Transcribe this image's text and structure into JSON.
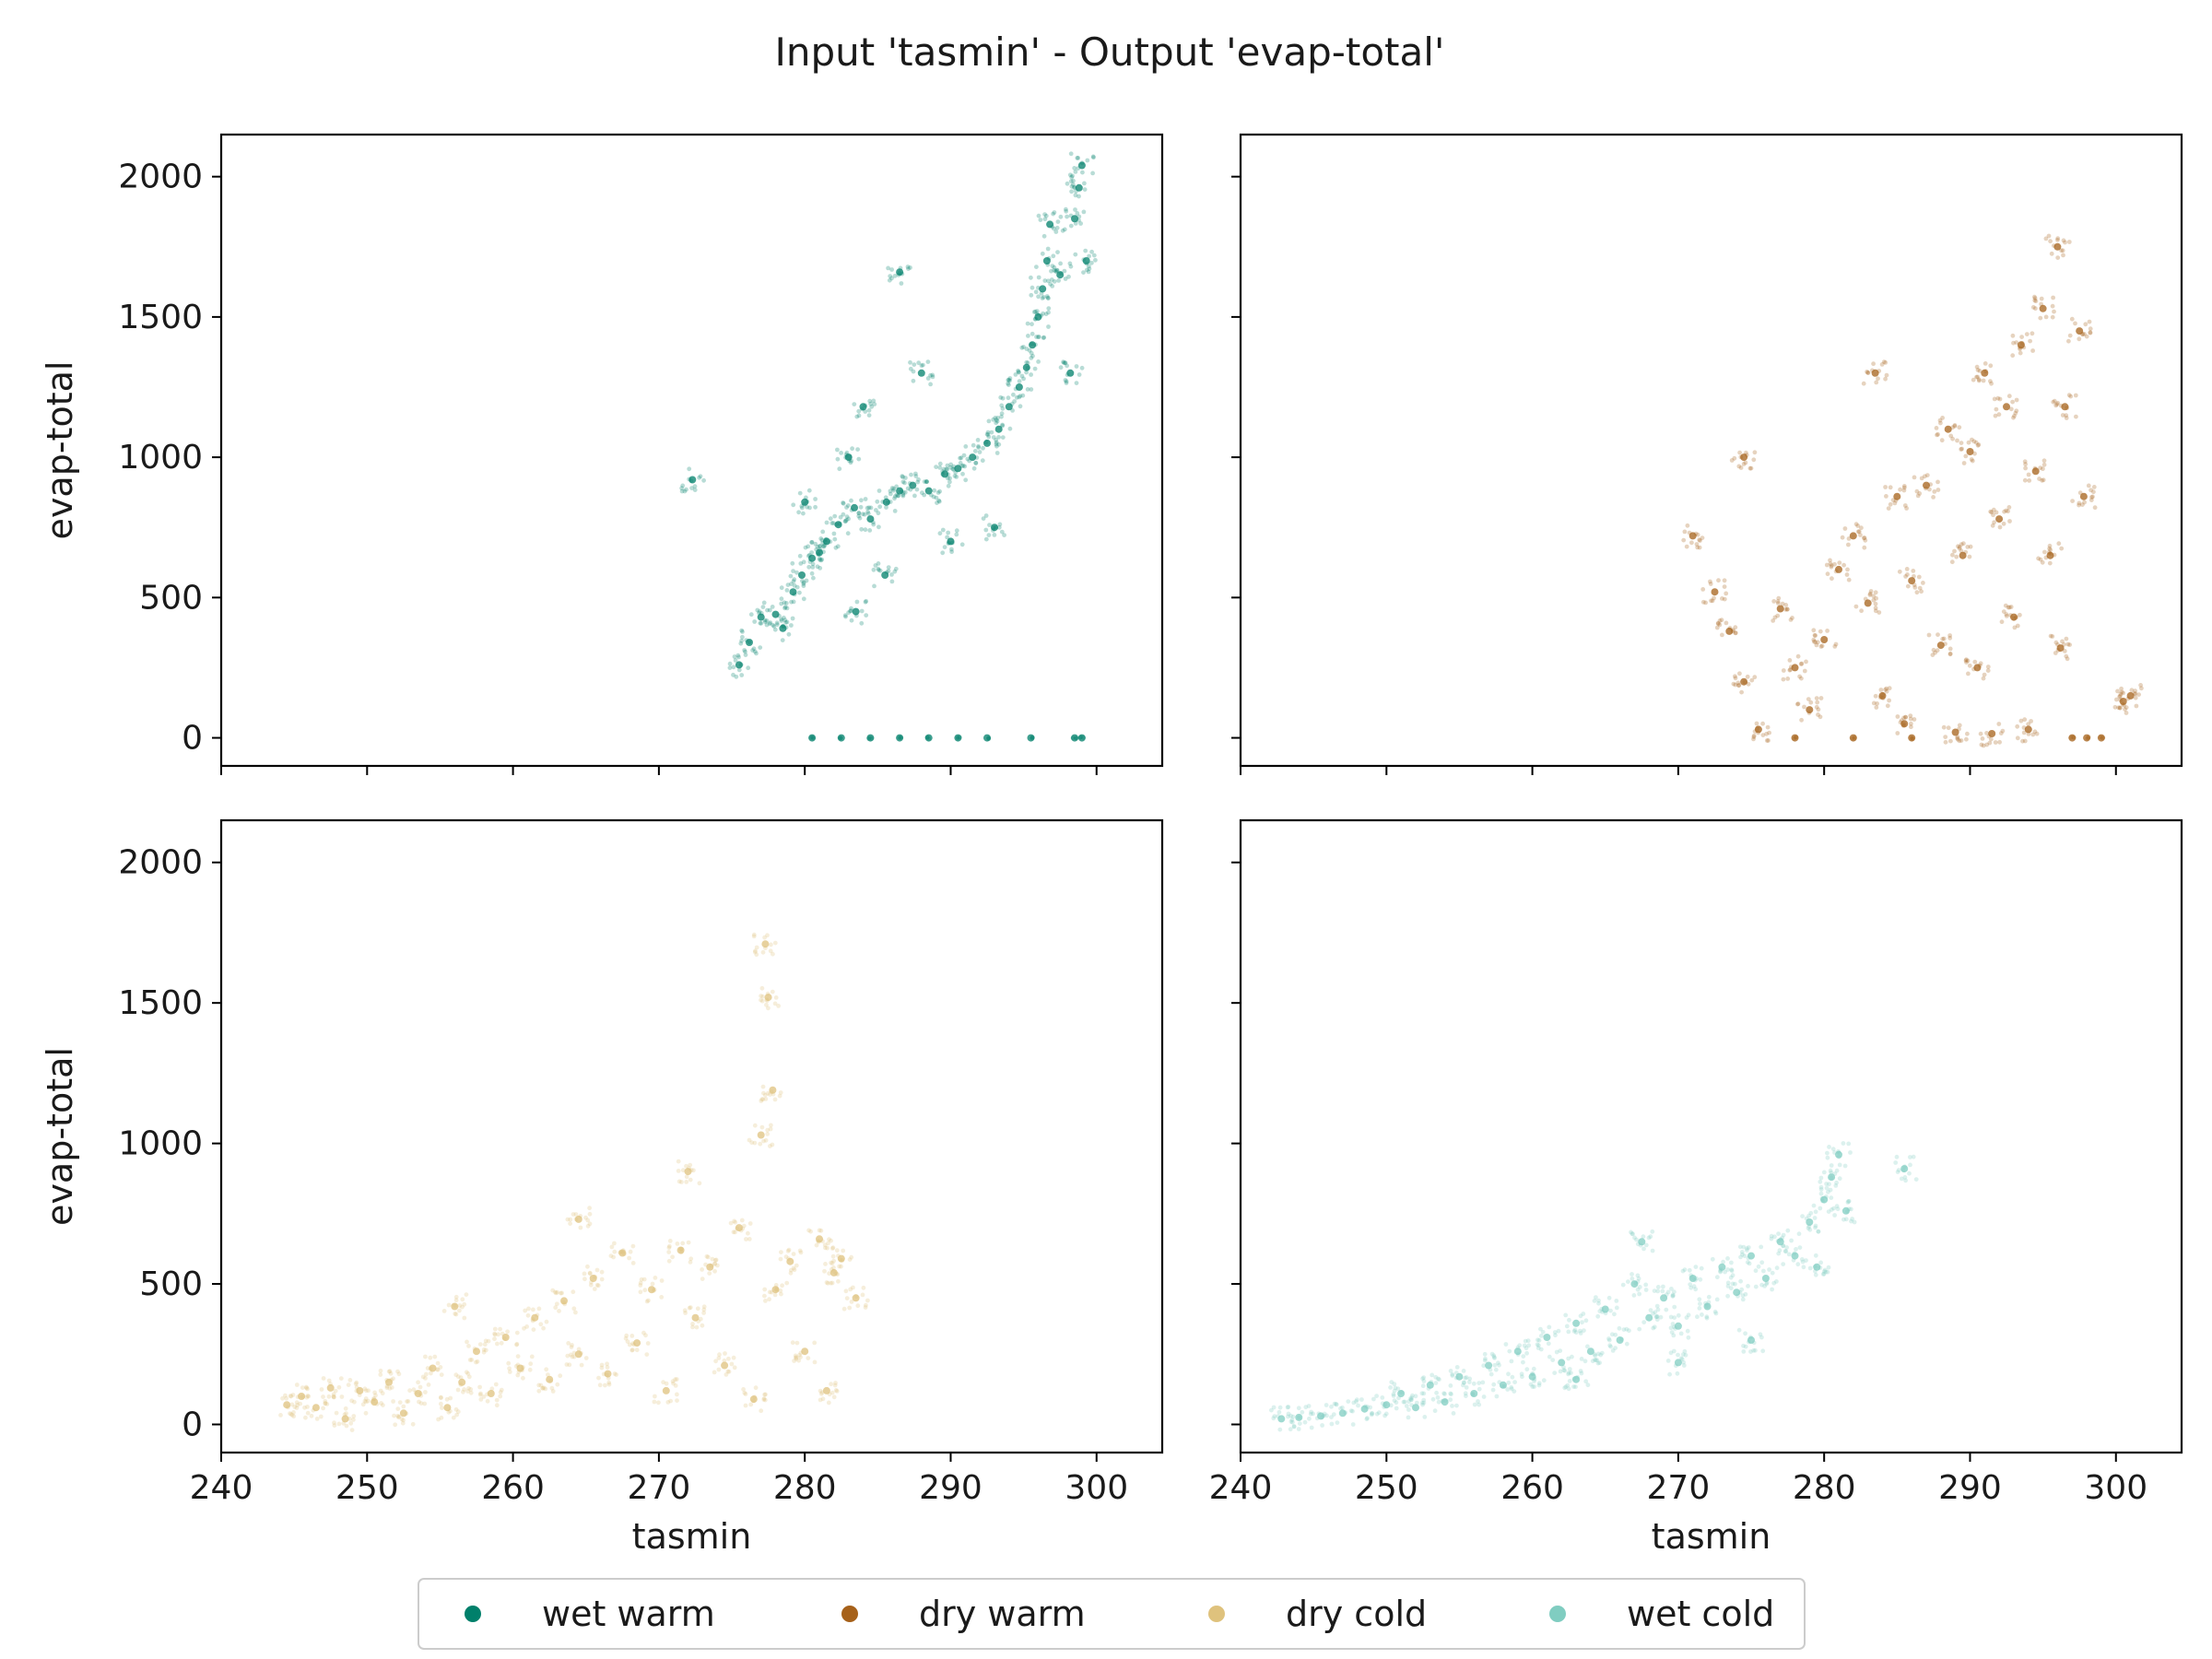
{
  "figure": {
    "title": "Input 'tasmin' - Output 'evap-total'"
  },
  "colors": {
    "axis": "#000000",
    "text": "#1a1a1a",
    "background": "#ffffff"
  },
  "chart_data": {
    "type": "scatter",
    "title": "Input 'tasmin' - Output 'evap-total'",
    "grid": false,
    "legend_placement": "bottom-center",
    "legend": [
      {
        "name": "wet warm",
        "color": "#00806b"
      },
      {
        "name": "dry warm",
        "color": "#a6611a"
      },
      {
        "name": "dry cold",
        "color": "#dfc27d"
      },
      {
        "name": "wet cold",
        "color": "#80cdc1"
      }
    ],
    "x_ticks": [
      240,
      250,
      260,
      270,
      280,
      290,
      300
    ],
    "y_ticks": [
      0,
      500,
      1000,
      1500,
      2000
    ],
    "panels": [
      {
        "series": "wet warm",
        "color": "#00806b",
        "xlabel": "",
        "ylabel": "evap-total",
        "xlim": [
          240,
          304.5
        ],
        "ylim": [
          -100,
          2150
        ],
        "x_tick_labels_shown": false,
        "y_tick_labels_shown": true,
        "points": [
          [
            272.3,
            920
          ],
          [
            275.5,
            260
          ],
          [
            276.2,
            340
          ],
          [
            277.0,
            430
          ],
          [
            278.0,
            440
          ],
          [
            278.5,
            390
          ],
          [
            279.2,
            520
          ],
          [
            279.8,
            580
          ],
          [
            280.5,
            640
          ],
          [
            281.5,
            700
          ],
          [
            282.3,
            760
          ],
          [
            283.4,
            820
          ],
          [
            284.5,
            780
          ],
          [
            285.6,
            840
          ],
          [
            286.5,
            880
          ],
          [
            287.4,
            900
          ],
          [
            288.5,
            880
          ],
          [
            289.6,
            940
          ],
          [
            290.5,
            960
          ],
          [
            291.5,
            1000
          ],
          [
            292.5,
            1050
          ],
          [
            293.3,
            1100
          ],
          [
            294.0,
            1180
          ],
          [
            294.7,
            1250
          ],
          [
            295.2,
            1320
          ],
          [
            295.6,
            1400
          ],
          [
            296.0,
            1500
          ],
          [
            296.3,
            1600
          ],
          [
            296.6,
            1700
          ],
          [
            296.8,
            1830
          ],
          [
            297.5,
            1650
          ],
          [
            298.5,
            1850
          ],
          [
            298.8,
            1960
          ],
          [
            299.0,
            2040
          ],
          [
            299.3,
            1700
          ],
          [
            298.2,
            1300
          ],
          [
            293.0,
            750
          ],
          [
            290.0,
            700
          ],
          [
            285.5,
            580
          ],
          [
            283.5,
            450
          ],
          [
            281.0,
            660
          ],
          [
            280.0,
            840
          ],
          [
            284.0,
            1180
          ],
          [
            286.5,
            1660
          ],
          [
            283.0,
            1000
          ],
          [
            288.0,
            1300
          ],
          [
            280.5,
            0
          ],
          [
            282.5,
            0
          ],
          [
            284.5,
            0
          ],
          [
            286.5,
            0
          ],
          [
            288.5,
            0
          ],
          [
            290.5,
            0
          ],
          [
            292.5,
            0
          ],
          [
            295.5,
            0
          ],
          [
            298.5,
            0
          ],
          [
            299.0,
            0
          ]
        ]
      },
      {
        "series": "dry warm",
        "color": "#a6611a",
        "xlabel": "",
        "ylabel": "",
        "xlim": [
          240,
          304.5
        ],
        "ylim": [
          -100,
          2150
        ],
        "x_tick_labels_shown": false,
        "y_tick_labels_shown": false,
        "points": [
          [
            271.0,
            720
          ],
          [
            272.5,
            520
          ],
          [
            273.5,
            380
          ],
          [
            274.5,
            200
          ],
          [
            275.5,
            30
          ],
          [
            277.0,
            460
          ],
          [
            278.0,
            250
          ],
          [
            279.0,
            100
          ],
          [
            280.0,
            350
          ],
          [
            281.0,
            600
          ],
          [
            282.0,
            720
          ],
          [
            283.0,
            480
          ],
          [
            284.0,
            150
          ],
          [
            285.0,
            860
          ],
          [
            285.5,
            50
          ],
          [
            286.0,
            560
          ],
          [
            287.0,
            900
          ],
          [
            288.0,
            330
          ],
          [
            288.5,
            1100
          ],
          [
            289.0,
            20
          ],
          [
            289.5,
            650
          ],
          [
            290.0,
            1020
          ],
          [
            290.5,
            250
          ],
          [
            291.0,
            1300
          ],
          [
            291.5,
            15
          ],
          [
            292.0,
            780
          ],
          [
            292.5,
            1180
          ],
          [
            293.0,
            430
          ],
          [
            293.5,
            1400
          ],
          [
            294.0,
            30
          ],
          [
            294.5,
            950
          ],
          [
            295.0,
            1530
          ],
          [
            295.5,
            650
          ],
          [
            296.0,
            1750
          ],
          [
            296.2,
            320
          ],
          [
            296.5,
            1180
          ],
          [
            297.0,
            0
          ],
          [
            297.5,
            1450
          ],
          [
            297.8,
            860
          ],
          [
            298.0,
            0
          ],
          [
            299.0,
            0
          ],
          [
            300.5,
            130
          ],
          [
            301.0,
            150
          ],
          [
            283.5,
            1300
          ],
          [
            274.5,
            1000
          ],
          [
            278.0,
            0
          ],
          [
            282.0,
            0
          ],
          [
            286.0,
            0
          ]
        ]
      },
      {
        "series": "dry cold",
        "color": "#dfc27d",
        "xlabel": "tasmin",
        "ylabel": "evap-total",
        "xlim": [
          240,
          304.5
        ],
        "ylim": [
          -100,
          2150
        ],
        "x_tick_labels_shown": true,
        "y_tick_labels_shown": true,
        "points": [
          [
            244.5,
            70
          ],
          [
            245.5,
            100
          ],
          [
            246.5,
            60
          ],
          [
            247.5,
            130
          ],
          [
            248.5,
            20
          ],
          [
            249.5,
            120
          ],
          [
            250.5,
            80
          ],
          [
            251.5,
            150
          ],
          [
            252.5,
            40
          ],
          [
            253.5,
            110
          ],
          [
            254.5,
            200
          ],
          [
            255.5,
            60
          ],
          [
            256.0,
            420
          ],
          [
            256.5,
            150
          ],
          [
            257.5,
            260
          ],
          [
            258.5,
            110
          ],
          [
            259.5,
            310
          ],
          [
            260.5,
            200
          ],
          [
            261.5,
            380
          ],
          [
            262.5,
            160
          ],
          [
            263.5,
            440
          ],
          [
            264.5,
            250
          ],
          [
            265.5,
            520
          ],
          [
            266.5,
            180
          ],
          [
            267.5,
            610
          ],
          [
            268.5,
            290
          ],
          [
            269.5,
            480
          ],
          [
            270.5,
            120
          ],
          [
            271.5,
            620
          ],
          [
            272.5,
            380
          ],
          [
            273.5,
            560
          ],
          [
            274.5,
            210
          ],
          [
            275.5,
            700
          ],
          [
            276.5,
            90
          ],
          [
            277.0,
            1030
          ],
          [
            277.3,
            1710
          ],
          [
            277.5,
            1520
          ],
          [
            277.8,
            1190
          ],
          [
            278.0,
            480
          ],
          [
            279.0,
            580
          ],
          [
            280.0,
            260
          ],
          [
            281.0,
            660
          ],
          [
            281.5,
            120
          ],
          [
            282.0,
            540
          ],
          [
            282.5,
            590
          ],
          [
            283.5,
            450
          ],
          [
            272.0,
            900
          ],
          [
            264.5,
            730
          ]
        ]
      },
      {
        "series": "wet cold",
        "color": "#80cdc1",
        "xlabel": "tasmin",
        "ylabel": "",
        "xlim": [
          240,
          304.5
        ],
        "ylim": [
          -100,
          2150
        ],
        "x_tick_labels_shown": true,
        "y_tick_labels_shown": true,
        "points": [
          [
            242.8,
            20
          ],
          [
            244.0,
            25
          ],
          [
            245.5,
            30
          ],
          [
            247.0,
            40
          ],
          [
            248.5,
            55
          ],
          [
            250.0,
            70
          ],
          [
            251.0,
            110
          ],
          [
            252.0,
            60
          ],
          [
            253.0,
            140
          ],
          [
            254.0,
            80
          ],
          [
            255.0,
            170
          ],
          [
            256.0,
            110
          ],
          [
            257.0,
            210
          ],
          [
            258.0,
            140
          ],
          [
            259.0,
            260
          ],
          [
            260.0,
            170
          ],
          [
            261.0,
            310
          ],
          [
            262.0,
            220
          ],
          [
            263.0,
            360
          ],
          [
            264.0,
            260
          ],
          [
            265.0,
            410
          ],
          [
            266.0,
            300
          ],
          [
            267.0,
            500
          ],
          [
            267.5,
            650
          ],
          [
            268.0,
            380
          ],
          [
            269.0,
            450
          ],
          [
            270.0,
            350
          ],
          [
            271.0,
            520
          ],
          [
            272.0,
            420
          ],
          [
            273.0,
            560
          ],
          [
            274.0,
            470
          ],
          [
            275.0,
            600
          ],
          [
            276.0,
            520
          ],
          [
            277.0,
            650
          ],
          [
            278.0,
            600
          ],
          [
            279.0,
            720
          ],
          [
            279.5,
            560
          ],
          [
            280.0,
            800
          ],
          [
            280.5,
            880
          ],
          [
            281.0,
            960
          ],
          [
            281.5,
            760
          ],
          [
            285.5,
            910
          ],
          [
            263.0,
            160
          ],
          [
            270.0,
            220
          ],
          [
            275.0,
            300
          ]
        ]
      }
    ]
  }
}
